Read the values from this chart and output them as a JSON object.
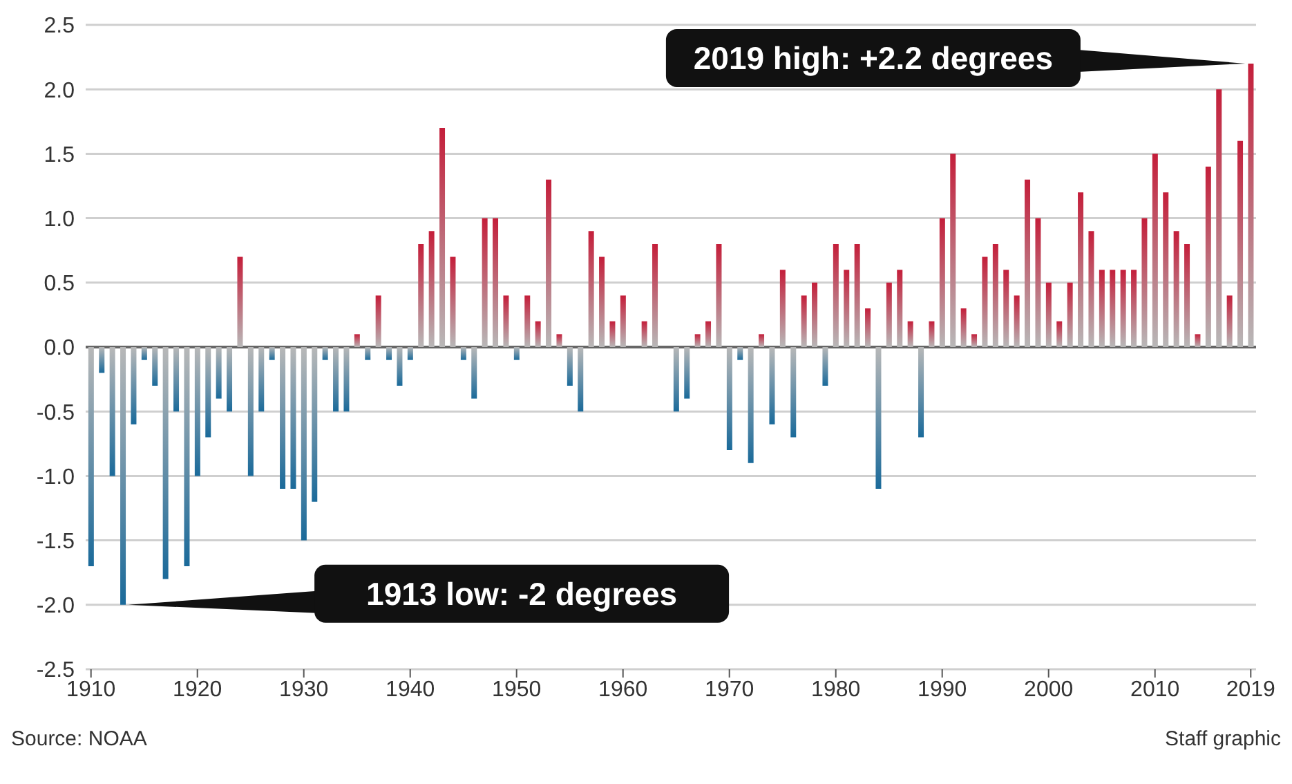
{
  "chart_data": {
    "type": "bar",
    "categories": [
      "1910",
      null,
      null,
      null,
      null,
      null,
      null,
      null,
      null,
      null,
      "1920",
      null,
      null,
      null,
      null,
      null,
      null,
      null,
      null,
      null,
      "1930",
      null,
      null,
      null,
      null,
      null,
      null,
      null,
      null,
      null,
      "1940",
      null,
      null,
      null,
      null,
      null,
      null,
      null,
      null,
      null,
      "1950",
      null,
      null,
      null,
      null,
      null,
      null,
      null,
      null,
      null,
      "1960",
      null,
      null,
      null,
      null,
      null,
      null,
      null,
      null,
      null,
      "1970",
      null,
      null,
      null,
      null,
      null,
      null,
      null,
      null,
      null,
      "1980",
      null,
      null,
      null,
      null,
      null,
      null,
      null,
      null,
      null,
      "1990",
      null,
      null,
      null,
      null,
      null,
      null,
      null,
      null,
      null,
      "2000",
      null,
      null,
      null,
      null,
      null,
      null,
      null,
      null,
      null,
      "2010",
      null,
      null,
      null,
      null,
      null,
      null,
      null,
      null,
      "2019"
    ],
    "values": [
      -1.7,
      -0.2,
      -1.0,
      -2.0,
      -0.6,
      -0.1,
      -0.3,
      -1.8,
      -0.5,
      -1.7,
      -1.0,
      -0.7,
      -0.4,
      -0.5,
      0.7,
      -1.0,
      -0.5,
      -0.1,
      -1.1,
      -1.1,
      -1.5,
      -1.2,
      -0.1,
      -0.5,
      -0.5,
      0.1,
      -0.1,
      0.4,
      -0.1,
      -0.3,
      -0.1,
      0.8,
      0.9,
      1.7,
      0.7,
      -0.1,
      -0.4,
      1.0,
      1.0,
      0.4,
      -0.1,
      0.4,
      0.2,
      1.3,
      0.1,
      -0.3,
      -0.5,
      0.9,
      0.7,
      0.2,
      0.4,
      0.0,
      0.2,
      0.8,
      0.0,
      -0.5,
      -0.4,
      0.1,
      0.2,
      0.8,
      -0.8,
      -0.1,
      -0.9,
      0.1,
      -0.6,
      0.6,
      -0.7,
      0.4,
      0.5,
      -0.3,
      0.8,
      0.6,
      0.8,
      0.3,
      -1.1,
      0.5,
      0.6,
      0.2,
      -0.7,
      0.2,
      1.0,
      1.5,
      0.3,
      0.1,
      0.7,
      0.8,
      0.6,
      0.4,
      1.3,
      1.0,
      0.5,
      0.2,
      0.5,
      1.2,
      0.9,
      0.6,
      0.6,
      0.6,
      0.6,
      1.0,
      1.5,
      1.2,
      0.9,
      0.8,
      0.1,
      1.4,
      2.0,
      0.4,
      1.6,
      2.2
    ],
    "colors": [
      "#1a6a9a",
      "#1a6a9a",
      "#1a6a9a",
      "#1a6a9a",
      "#1a6a9a",
      "#1a6a9a",
      "#1a6a9a",
      "#1a6a9a",
      "#1a6a9a",
      "#1a6a9a",
      "#1a6a9a",
      "#1a6a9a",
      "#1a6a9a",
      "#1a6a9a",
      "#c41e3a",
      "#1a6a9a",
      "#1a6a9a",
      "#1a6a9a",
      "#1a6a9a",
      "#1a6a9a",
      "#1a6a9a",
      "#1a6a9a",
      "#1a6a9a",
      "#1a6a9a",
      "#1a6a9a",
      "#c41e3a",
      "#1a6a9a",
      "#c41e3a",
      "#1a6a9a",
      "#1a6a9a",
      "#1a6a9a",
      "#c41e3a",
      "#c41e3a",
      "#c41e3a",
      "#c41e3a",
      "#1a6a9a",
      "#1a6a9a",
      "#c41e3a",
      "#c41e3a",
      "#c41e3a",
      "#1a6a9a",
      "#c41e3a",
      "#c41e3a",
      "#c41e3a",
      "#c41e3a",
      "#1a6a9a",
      "#1a6a9a",
      "#c41e3a",
      "#c41e3a",
      "#c41e3a",
      "#c41e3a",
      "#c41e3a",
      "#c41e3a",
      "#c41e3a",
      "#c41e3a",
      "#1a6a9a",
      "#1a6a9a",
      "#c41e3a",
      "#c41e3a",
      "#c41e3a",
      "#1a6a9a",
      "#1a6a9a",
      "#1a6a9a",
      "#c41e3a",
      "#1a6a9a",
      "#c41e3a",
      "#1a6a9a",
      "#c41e3a",
      "#c41e3a",
      "#1a6a9a",
      "#c41e3a",
      "#c41e3a",
      "#c41e3a",
      "#c41e3a",
      "#1a6a9a",
      "#c41e3a",
      "#c41e3a",
      "#c41e3a",
      "#1a6a9a",
      "#c41e3a",
      "#c41e3a",
      "#c41e3a",
      "#c41e3a",
      "#c41e3a",
      "#c41e3a",
      "#c41e3a",
      "#c41e3a",
      "#c41e3a",
      "#c41e3a",
      "#c41e3a",
      "#c41e3a",
      "#c41e3a",
      "#c41e3a",
      "#c41e3a",
      "#c41e3a",
      "#c41e3a",
      "#c41e3a",
      "#c41e3a",
      "#c41e3a",
      "#c41e3a",
      "#c41e3a",
      "#c41e3a",
      "#c41e3a",
      "#c41e3a",
      "#c41e3a",
      "#c41e3a",
      "#c41e3a",
      "#c41e3a",
      "#c41e3a",
      "#c41e3a"
    ],
    "ylim": [
      -2.5,
      2.5
    ],
    "yticks": [
      {
        "value": -2.5,
        "label": "-2.5"
      },
      {
        "value": -2,
        "label": "-2.0"
      },
      {
        "value": -1.5,
        "label": "-1.5"
      },
      {
        "value": -1,
        "label": "-1.0"
      },
      {
        "value": -0.5,
        "label": "-0.5"
      },
      {
        "value": 0,
        "label": "0.0"
      },
      {
        "value": 0.5,
        "label": "0.5"
      },
      {
        "value": 1,
        "label": "1.0"
      },
      {
        "value": 1.5,
        "label": "1.5"
      },
      {
        "value": 2,
        "label": "2.0"
      },
      {
        "value": 2.5,
        "label": "2.5"
      }
    ],
    "grid": "y",
    "annotations": [
      "2019 high: +2.2 degrees",
      "1913 low: -2 degrees",
      "Source: NOAA",
      "Staff graphic"
    ]
  }
}
